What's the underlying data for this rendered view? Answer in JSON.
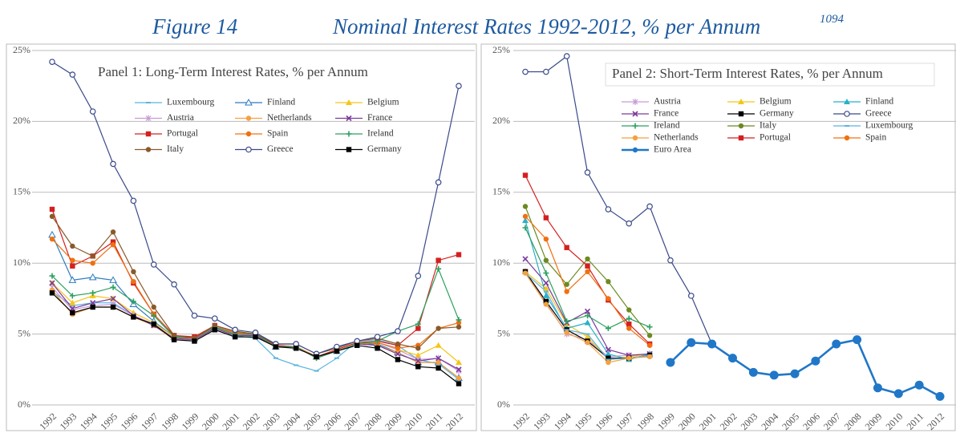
{
  "figure_label": "Figure 14",
  "title": "Nominal Interest Rates 1992-2012, % per Annum",
  "footnote_ref": "1094",
  "chart_data": [
    {
      "type": "line",
      "title": "Panel 1: Long-Term Interest Rates, % per Annum",
      "categories": [
        "1992",
        "1993",
        "1994",
        "1995",
        "1996",
        "1997",
        "1998",
        "1999",
        "2000",
        "2001",
        "2002",
        "2003",
        "2004",
        "2005",
        "2006",
        "2007",
        "2008",
        "2009",
        "2010",
        "2011",
        "2012"
      ],
      "ylim": [
        0,
        25
      ],
      "yticks": [
        {
          "value": 0,
          "label": "0%"
        },
        {
          "value": 5,
          "label": "5%"
        },
        {
          "value": 10,
          "label": "10%"
        },
        {
          "value": 15,
          "label": "15%"
        },
        {
          "value": 20,
          "label": "20%"
        },
        {
          "value": 25,
          "label": "25%"
        }
      ],
      "grid": true,
      "series": [
        {
          "name": "Luxembourg",
          "color": "#5ab4e0",
          "marker": "dash",
          "values": [
            8.0,
            7.0,
            7.2,
            7.2,
            6.3,
            5.6,
            4.7,
            4.7,
            5.5,
            4.9,
            4.7,
            3.3,
            2.8,
            2.4,
            3.3,
            4.5,
            4.6,
            4.2,
            3.2,
            2.9,
            1.8
          ]
        },
        {
          "name": "Finland",
          "color": "#2b7bc0",
          "marker": "open-triangle",
          "values": [
            12.0,
            8.8,
            9.0,
            8.8,
            7.1,
            5.9,
            4.8,
            4.7,
            5.5,
            5.0,
            5.0,
            4.1,
            4.1,
            3.4,
            3.8,
            4.3,
            4.3,
            3.7,
            3.0,
            3.0,
            1.9
          ]
        },
        {
          "name": "Belgium",
          "color": "#f5c518",
          "marker": "triangle",
          "values": [
            8.6,
            7.2,
            7.7,
            7.5,
            6.5,
            5.8,
            4.8,
            4.8,
            5.6,
            5.1,
            5.0,
            4.2,
            4.1,
            3.4,
            3.8,
            4.3,
            4.4,
            3.9,
            3.5,
            4.2,
            3.0
          ]
        },
        {
          "name": "Austria",
          "color": "#c89ad8",
          "marker": "star",
          "values": [
            8.3,
            6.7,
            7.0,
            7.1,
            6.3,
            5.7,
            4.7,
            4.7,
            5.6,
            5.1,
            5.0,
            4.2,
            4.1,
            3.4,
            3.8,
            4.3,
            4.4,
            3.9,
            3.2,
            3.3,
            2.4
          ]
        },
        {
          "name": "Netherlands",
          "color": "#f5a040",
          "marker": "circle",
          "values": [
            8.1,
            6.4,
            6.9,
            6.9,
            6.2,
            5.6,
            4.6,
            4.6,
            5.4,
            5.0,
            4.9,
            4.1,
            4.1,
            3.4,
            3.8,
            4.3,
            4.2,
            3.7,
            3.0,
            3.0,
            1.9
          ]
        },
        {
          "name": "France",
          "color": "#7b3a9a",
          "marker": "x",
          "values": [
            8.6,
            6.8,
            7.2,
            7.5,
            6.3,
            5.6,
            4.7,
            4.6,
            5.4,
            4.9,
            4.9,
            4.1,
            4.1,
            3.4,
            3.8,
            4.3,
            4.2,
            3.6,
            3.1,
            3.3,
            2.5
          ]
        },
        {
          "name": "Portugal",
          "color": "#d42020",
          "marker": "square",
          "values": [
            13.8,
            9.8,
            10.5,
            11.5,
            8.6,
            6.4,
            4.9,
            4.8,
            5.6,
            5.2,
            5.0,
            4.2,
            4.1,
            3.4,
            3.9,
            4.4,
            4.5,
            4.2,
            5.4,
            10.2,
            10.6
          ]
        },
        {
          "name": "Spain",
          "color": "#f07010",
          "marker": "circle",
          "values": [
            11.7,
            10.2,
            10.0,
            11.3,
            8.7,
            6.4,
            4.8,
            4.7,
            5.5,
            5.1,
            5.0,
            4.1,
            4.1,
            3.4,
            3.8,
            4.3,
            4.4,
            4.0,
            4.2,
            5.4,
            5.8
          ]
        },
        {
          "name": "Ireland",
          "color": "#2ca060",
          "marker": "plus",
          "values": [
            9.1,
            7.7,
            7.9,
            8.3,
            7.3,
            6.3,
            4.8,
            4.7,
            5.5,
            5.0,
            5.0,
            4.1,
            4.1,
            3.3,
            3.8,
            4.3,
            4.5,
            5.2,
            5.7,
            9.6,
            6.0
          ]
        },
        {
          "name": "Italy",
          "color": "#8a5a2a",
          "marker": "circle",
          "values": [
            13.3,
            11.2,
            10.5,
            12.2,
            9.4,
            6.9,
            4.9,
            4.7,
            5.6,
            5.2,
            5.0,
            4.3,
            4.3,
            3.6,
            4.0,
            4.5,
            4.7,
            4.3,
            4.0,
            5.4,
            5.5
          ]
        },
        {
          "name": "Greece",
          "color": "#3a4a8a",
          "marker": "open-circle",
          "values": [
            24.2,
            23.3,
            20.7,
            17.0,
            14.4,
            9.9,
            8.5,
            6.3,
            6.1,
            5.3,
            5.1,
            4.3,
            4.3,
            3.6,
            4.1,
            4.5,
            4.8,
            5.2,
            9.1,
            15.7,
            22.5
          ]
        },
        {
          "name": "Germany",
          "color": "#000000",
          "marker": "square",
          "values": [
            7.9,
            6.5,
            6.9,
            6.9,
            6.2,
            5.7,
            4.6,
            4.5,
            5.3,
            4.8,
            4.8,
            4.1,
            4.0,
            3.4,
            3.8,
            4.2,
            4.0,
            3.2,
            2.7,
            2.6,
            1.5
          ]
        }
      ]
    },
    {
      "type": "line",
      "title": "Panel 2: Short-Term Interest Rates, % per Annum",
      "categories": [
        "1992",
        "1993",
        "1994",
        "1995",
        "1996",
        "1997",
        "1998",
        "1999",
        "2000",
        "2001",
        "2002",
        "2003",
        "2004",
        "2005",
        "2006",
        "2007",
        "2008",
        "2009",
        "2010",
        "2011",
        "2012"
      ],
      "ylim": [
        0,
        25
      ],
      "yticks": [
        {
          "value": 0,
          "label": "0%"
        },
        {
          "value": 5,
          "label": "5%"
        },
        {
          "value": 10,
          "label": "10%"
        },
        {
          "value": 15,
          "label": "15%"
        },
        {
          "value": 20,
          "label": "20%"
        },
        {
          "value": 25,
          "label": "25%"
        }
      ],
      "grid": true,
      "series": [
        {
          "name": "Austria",
          "color": "#c89ad8",
          "marker": "star",
          "values": [
            9.4,
            7.2,
            5.0,
            4.6,
            3.4,
            3.5,
            3.6,
            null,
            null,
            null,
            null,
            null,
            null,
            null,
            null,
            null,
            null,
            null,
            null,
            null,
            null
          ]
        },
        {
          "name": "Belgium",
          "color": "#f5c518",
          "marker": "triangle",
          "values": [
            9.4,
            8.2,
            5.7,
            4.8,
            3.2,
            3.4,
            3.6,
            null,
            null,
            null,
            null,
            null,
            null,
            null,
            null,
            null,
            null,
            null,
            null,
            null,
            null
          ]
        },
        {
          "name": "Finland",
          "color": "#2bb0c8",
          "marker": "triangle",
          "values": [
            13.0,
            7.7,
            5.4,
            5.8,
            3.6,
            3.2,
            3.6,
            null,
            null,
            null,
            null,
            null,
            null,
            null,
            null,
            null,
            null,
            null,
            null,
            null,
            null
          ]
        },
        {
          "name": "France",
          "color": "#7b3a9a",
          "marker": "x",
          "values": [
            10.3,
            8.6,
            5.8,
            6.6,
            3.9,
            3.5,
            3.6,
            null,
            null,
            null,
            null,
            null,
            null,
            null,
            null,
            null,
            null,
            null,
            null,
            null,
            null
          ]
        },
        {
          "name": "Germany",
          "color": "#000000",
          "marker": "square",
          "values": [
            9.4,
            7.3,
            5.3,
            4.5,
            3.3,
            3.3,
            3.5,
            null,
            null,
            null,
            null,
            null,
            null,
            null,
            null,
            null,
            null,
            null,
            null,
            null,
            null
          ]
        },
        {
          "name": "Greece",
          "color": "#3a4a8a",
          "marker": "open-circle",
          "values": [
            23.5,
            23.5,
            24.6,
            16.4,
            13.8,
            12.8,
            14.0,
            10.2,
            7.7,
            4.3,
            null,
            null,
            null,
            null,
            null,
            null,
            null,
            null,
            null,
            null,
            null
          ]
        },
        {
          "name": "Ireland",
          "color": "#2ca060",
          "marker": "plus",
          "values": [
            12.5,
            9.3,
            5.9,
            6.3,
            5.4,
            6.1,
            5.5,
            null,
            null,
            null,
            null,
            null,
            null,
            null,
            null,
            null,
            null,
            null,
            null,
            null,
            null
          ]
        },
        {
          "name": "Italy",
          "color": "#6b8a20",
          "marker": "circle",
          "values": [
            14.0,
            10.2,
            8.5,
            10.3,
            8.7,
            6.7,
            4.9,
            null,
            null,
            null,
            null,
            null,
            null,
            null,
            null,
            null,
            null,
            null,
            null,
            null,
            null
          ]
        },
        {
          "name": "Luxembourg",
          "color": "#5ab4e0",
          "marker": "dash",
          "values": [
            9.3,
            8.0,
            5.3,
            5.0,
            3.2,
            3.3,
            3.5,
            null,
            null,
            null,
            null,
            null,
            null,
            null,
            null,
            null,
            null,
            null,
            null,
            null,
            null
          ]
        },
        {
          "name": "Netherlands",
          "color": "#f5a040",
          "marker": "circle",
          "values": [
            9.3,
            7.1,
            5.1,
            4.4,
            3.0,
            3.3,
            3.4,
            null,
            null,
            null,
            null,
            null,
            null,
            null,
            null,
            null,
            null,
            null,
            null,
            null,
            null
          ]
        },
        {
          "name": "Portugal",
          "color": "#d42020",
          "marker": "square",
          "values": [
            16.2,
            13.2,
            11.1,
            9.8,
            7.4,
            5.7,
            4.3,
            null,
            null,
            null,
            null,
            null,
            null,
            null,
            null,
            null,
            null,
            null,
            null,
            null,
            null
          ]
        },
        {
          "name": "Spain",
          "color": "#f07010",
          "marker": "circle",
          "values": [
            13.3,
            11.7,
            8.0,
            9.4,
            7.5,
            5.4,
            4.2,
            null,
            null,
            null,
            null,
            null,
            null,
            null,
            null,
            null,
            null,
            null,
            null,
            null,
            null
          ]
        },
        {
          "name": "Euro Area",
          "color": "#2077c8",
          "marker": "big-circle",
          "values": [
            null,
            null,
            null,
            null,
            null,
            null,
            null,
            3.0,
            4.4,
            4.3,
            3.3,
            2.3,
            2.1,
            2.2,
            3.1,
            4.3,
            4.6,
            1.2,
            0.8,
            1.4,
            0.6
          ]
        }
      ]
    }
  ]
}
